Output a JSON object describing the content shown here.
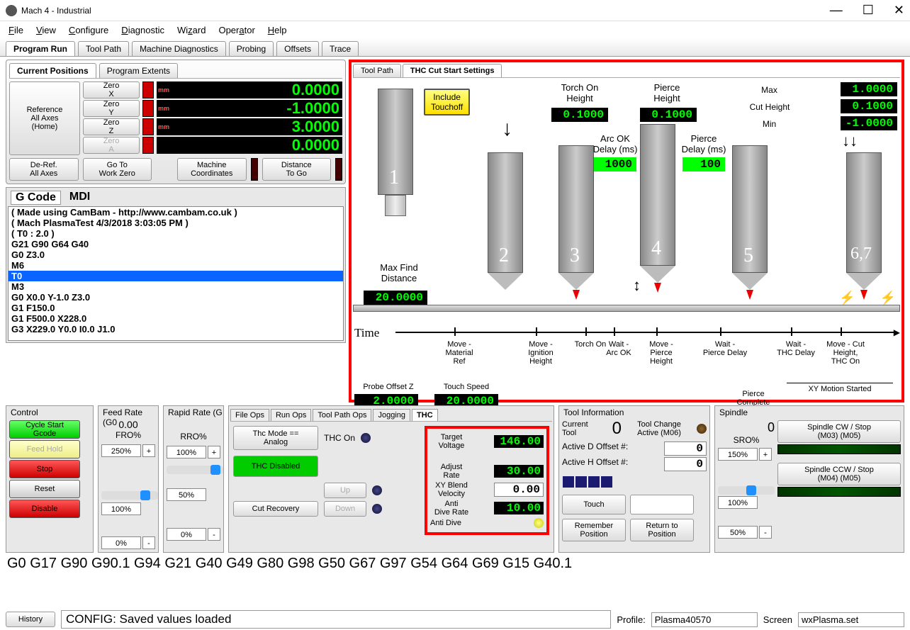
{
  "window": {
    "title": "Mach 4 - Industrial"
  },
  "menus": [
    "File",
    "View",
    "Configure",
    "Diagnostic",
    "Wizard",
    "Operator",
    "Help"
  ],
  "mainTabs": [
    "Program Run",
    "Tool Path",
    "Machine Diagnostics",
    "Probing",
    "Offsets",
    "Trace"
  ],
  "posTabs": [
    "Current Positions",
    "Program Extents"
  ],
  "refAll": "Reference\nAll Axes\n(Home)",
  "axes": [
    {
      "zero": "Zero\nX",
      "unit": "mm",
      "val": "0.0000"
    },
    {
      "zero": "Zero\nY",
      "unit": "mm",
      "val": "-1.0000"
    },
    {
      "zero": "Zero\nZ",
      "unit": "mm",
      "val": "3.0000"
    },
    {
      "zero": "Zero\nA",
      "unit": "",
      "val": "0.0000",
      "disabled": true
    }
  ],
  "droBtns": [
    "De-Ref.\nAll Axes",
    "Go To\nWork Zero",
    "Machine\nCoordinates",
    "Distance\nTo Go"
  ],
  "gcodeTabs": [
    "G Code",
    "MDI"
  ],
  "gcode": [
    "( Made using CamBam - http://www.cambam.co.uk )",
    "( Mach  PlasmaTest 4/3/2018 3:03:05 PM )",
    "( T0 : 2.0 )",
    "G21 G90 G64 G40",
    "G0 Z3.0",
    "M6",
    "T0",
    "M3",
    "G0 X0.0 Y-1.0 Z3.0",
    "G1 F150.0",
    "G1 F500.0 X228.0",
    "G3 X229.0 Y0.0 I0.0 J1.0"
  ],
  "gcodeHL": 6,
  "thcTabs": [
    "Tool Path",
    "THC Cut Start Settings"
  ],
  "thc": {
    "includeTouchoff": "Include\nTouchoff",
    "maxFindLabel": "Max Find\nDistance",
    "maxFindVal": "20.0000",
    "probeOffsetLabel": "Probe Offset Z",
    "probeOffsetVal": "2.0000",
    "touchSpeedLabel": "Touch Speed",
    "touchSpeedVal": "20.0000",
    "torchOnHt": "Torch On\nHeight",
    "torchOnHtVal": "0.1000",
    "arcOK": "Arc OK\nDelay (ms)",
    "arcOKVal": "1000",
    "pierceHt": "Pierce\nHeight",
    "pierceHtVal": "0.1000",
    "pierceDelay": "Pierce\nDelay (ms)",
    "pierceDelayVal": "100",
    "maxL": "Max",
    "maxV": "1.0000",
    "cutHtL": "Cut Height",
    "cutHtV": "0.1000",
    "minL": "Min",
    "minV": "-1.0000",
    "timeLabel": "Time",
    "tlabels": [
      "Move -\nMaterial\nRef",
      "Move -\nIgnition\nHeight",
      "Torch On",
      "Wait -\nArc OK",
      "Move -\nPierce\nHeight",
      "Wait -\nPierce Delay",
      "Wait -\nTHC Delay",
      "Move -  Cut\nHeight,\nTHC On"
    ],
    "xyStarted": "XY Motion Started",
    "pierceComplete": "Pierce\nComplete"
  },
  "control": {
    "title": "Control",
    "cycleStart": "Cycle Start\nGcode",
    "feedHold": "Feed Hold",
    "stop": "Stop",
    "reset": "Reset",
    "disable": "Disable"
  },
  "feed": {
    "title": "Feed Rate (G0",
    "val": "0.00",
    "fro": "FRO%",
    "p250": "250%",
    "p100": "100%",
    "p0": "0%"
  },
  "rapid": {
    "title": "Rapid Rate (G",
    "rro": "RRO%",
    "p100": "100%",
    "p50": "50%",
    "p0": "0%"
  },
  "opsTabs": [
    "File Ops",
    "Run Ops",
    "Tool Path Ops",
    "Jogging",
    "THC"
  ],
  "ops": {
    "thcMode": "Thc Mode ==\nAnalog",
    "thcOn": "THC On",
    "thcDisabled": "THC Disabled",
    "up": "Up",
    "down": "Down",
    "cutRecovery": "Cut Recovery"
  },
  "thcVals": {
    "targetV": "Target\nVoltage",
    "targetVVal": "146.00",
    "adjRate": "Adjust\nRate",
    "adjRateVal": "30.00",
    "xyBlend": "XY Blend\nVelocity",
    "xyBlendVal": "0.00",
    "antiDive": "Anti\nDive Rate",
    "antiDiveVal": "10.00",
    "antiDiveS": "Anti Dive"
  },
  "tool": {
    "title": "Tool Information",
    "curTool": "Current\nTool",
    "curToolVal": "0",
    "tcActive": "Tool Change\nActive (M06)",
    "actD": "Active D Offset #:",
    "actDVal": "0",
    "actH": "Active H Offset #:",
    "actHVal": "0",
    "touch": "Touch",
    "remember": "Remember\nPosition",
    "return": "Return to\nPosition"
  },
  "spindle": {
    "title": "Spindle",
    "val": "0",
    "sro": "SRO%",
    "cw": "Spindle CW / Stop\n(M03)        (M05)",
    "ccw": "Spindle CCW / Stop\n(M04)        (M05)",
    "p150": "150%",
    "p100": "100%",
    "p50": "50%"
  },
  "gcodeLine": "G0 G17 G90 G90.1 G94 G21 G40 G49 G80 G98 G50 G67 G97 G54 G64 G69 G15 G40.1",
  "status": {
    "history": "History",
    "config": "CONFIG: Saved values loaded",
    "profileL": "Profile:",
    "profile": "Plasma40570",
    "screenL": "Screen",
    "screen": "wxPlasma.set"
  }
}
